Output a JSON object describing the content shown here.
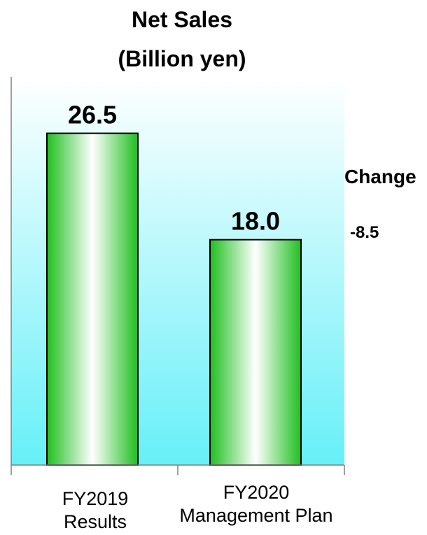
{
  "chart_data": {
    "type": "bar",
    "title": "Net Sales",
    "subtitle": "(Billion yen)",
    "categories": [
      "FY2019\nResults",
      "FY2020\nManagement Plan"
    ],
    "category_lines": [
      [
        "FY2019",
        "Results"
      ],
      [
        "FY2020",
        "Management Plan"
      ]
    ],
    "values": [
      26.5,
      18.0
    ],
    "data_labels": [
      "26.5",
      "18.0"
    ],
    "ylim": [
      0,
      31
    ],
    "grid": false,
    "annotation": {
      "label": "Change",
      "value": "-8.5"
    },
    "colors": {
      "bar_dark": "#1fbf1f",
      "bar_light": "#ffffff",
      "bar_edge": "#000000",
      "bg_top": "#ffffff",
      "bg_bottom": "#66f0f8"
    }
  }
}
